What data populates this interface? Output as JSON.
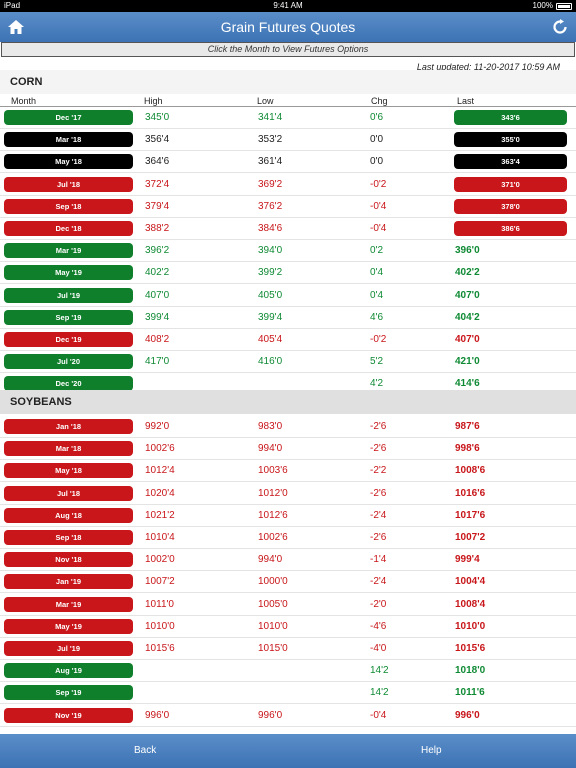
{
  "status": {
    "carrier": "iPad",
    "time": "9:41 AM",
    "battery": "100%"
  },
  "nav": {
    "title": "Grain Futures Quotes",
    "home_icon": "home-icon",
    "refresh_icon": "refresh-icon"
  },
  "subheader": "Click the Month to View Futures Options",
  "updated": "Last updated: 11-20-2017 10:59 AM",
  "columns": {
    "month": "Month",
    "high": "High",
    "low": "Low",
    "chg": "Chg",
    "last": "Last"
  },
  "colors": {
    "green": "#0f7f2c",
    "red": "#c8161a",
    "nav": "#3d72b4"
  },
  "corn": {
    "title": "CORN",
    "rows": [
      {
        "month": "Dec '17",
        "high": "345'0",
        "low": "341'4",
        "chg": "0'6",
        "last": "343'6",
        "color": "green",
        "last_style": "pill"
      },
      {
        "month": "Mar '18",
        "high": "356'4",
        "low": "353'2",
        "chg": "0'0",
        "last": "355'0",
        "color": "black",
        "last_style": "pill"
      },
      {
        "month": "May '18",
        "high": "364'6",
        "low": "361'4",
        "chg": "0'0",
        "last": "363'4",
        "color": "black",
        "last_style": "pill"
      },
      {
        "month": "Jul '18",
        "high": "372'4",
        "low": "369'2",
        "chg": "-0'2",
        "last": "371'0",
        "color": "red",
        "last_style": "pill"
      },
      {
        "month": "Sep '18",
        "high": "379'4",
        "low": "376'2",
        "chg": "-0'4",
        "last": "378'0",
        "color": "red",
        "last_style": "pill"
      },
      {
        "month": "Dec '18",
        "high": "388'2",
        "low": "384'6",
        "chg": "-0'4",
        "last": "386'6",
        "color": "red",
        "last_style": "pill"
      },
      {
        "month": "Mar '19",
        "high": "396'2",
        "low": "394'0",
        "chg": "0'2",
        "last": "396'0",
        "color": "green",
        "last_style": "text"
      },
      {
        "month": "May '19",
        "high": "402'2",
        "low": "399'2",
        "chg": "0'4",
        "last": "402'2",
        "color": "green",
        "last_style": "text"
      },
      {
        "month": "Jul '19",
        "high": "407'0",
        "low": "405'0",
        "chg": "0'4",
        "last": "407'0",
        "color": "green",
        "last_style": "text"
      },
      {
        "month": "Sep '19",
        "high": "399'4",
        "low": "399'4",
        "chg": "4'6",
        "last": "404'2",
        "color": "green",
        "last_style": "text"
      },
      {
        "month": "Dec '19",
        "high": "408'2",
        "low": "405'4",
        "chg": "-0'2",
        "last": "407'0",
        "color": "red",
        "last_style": "text"
      },
      {
        "month": "Jul '20",
        "high": "417'0",
        "low": "416'0",
        "chg": "5'2",
        "last": "421'0",
        "color": "green",
        "last_style": "text"
      },
      {
        "month": "Dec '20",
        "high": "",
        "low": "",
        "chg": "4'2",
        "last": "414'6",
        "color": "green",
        "last_style": "text"
      }
    ]
  },
  "soybeans": {
    "title": "SOYBEANS",
    "rows": [
      {
        "month": "Jan '18",
        "high": "992'0",
        "low": "983'0",
        "chg": "-2'6",
        "last": "987'6",
        "color": "red"
      },
      {
        "month": "Mar '18",
        "high": "1002'6",
        "low": "994'0",
        "chg": "-2'6",
        "last": "998'6",
        "color": "red"
      },
      {
        "month": "May '18",
        "high": "1012'4",
        "low": "1003'6",
        "chg": "-2'2",
        "last": "1008'6",
        "color": "red"
      },
      {
        "month": "Jul '18",
        "high": "1020'4",
        "low": "1012'0",
        "chg": "-2'6",
        "last": "1016'6",
        "color": "red"
      },
      {
        "month": "Aug '18",
        "high": "1021'2",
        "low": "1012'6",
        "chg": "-2'4",
        "last": "1017'6",
        "color": "red"
      },
      {
        "month": "Sep '18",
        "high": "1010'4",
        "low": "1002'6",
        "chg": "-2'6",
        "last": "1007'2",
        "color": "red"
      },
      {
        "month": "Nov '18",
        "high": "1002'0",
        "low": "994'0",
        "chg": "-1'4",
        "last": "999'4",
        "color": "red"
      },
      {
        "month": "Jan '19",
        "high": "1007'2",
        "low": "1000'0",
        "chg": "-2'4",
        "last": "1004'4",
        "color": "red"
      },
      {
        "month": "Mar '19",
        "high": "1011'0",
        "low": "1005'0",
        "chg": "-2'0",
        "last": "1008'4",
        "color": "red"
      },
      {
        "month": "May '19",
        "high": "1010'0",
        "low": "1010'0",
        "chg": "-4'6",
        "last": "1010'0",
        "color": "red"
      },
      {
        "month": "Jul '19",
        "high": "1015'6",
        "low": "1015'0",
        "chg": "-4'0",
        "last": "1015'6",
        "color": "red"
      },
      {
        "month": "Aug '19",
        "high": "",
        "low": "",
        "chg": "14'2",
        "last": "1018'0",
        "color": "green"
      },
      {
        "month": "Sep '19",
        "high": "",
        "low": "",
        "chg": "14'2",
        "last": "1011'6",
        "color": "green"
      },
      {
        "month": "Nov '19",
        "high": "996'0",
        "low": "996'0",
        "chg": "-0'4",
        "last": "996'0",
        "color": "red"
      }
    ]
  },
  "toolbar": {
    "back": "Back",
    "help": "Help"
  }
}
